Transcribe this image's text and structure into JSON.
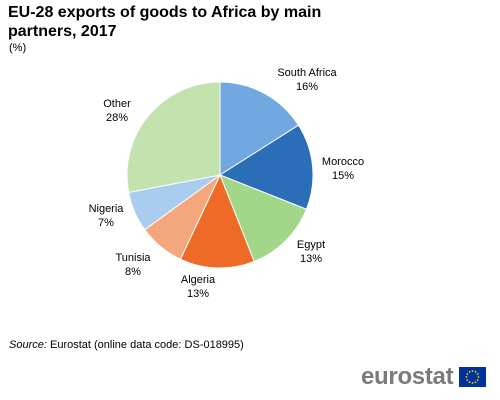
{
  "header": {
    "title": "EU-28 exports of goods to Africa by main partners, 2017",
    "unit": "(%)"
  },
  "chart_data": {
    "type": "pie",
    "title": "EU-28 exports of goods to Africa by main partners, 2017",
    "unit": "(%)",
    "categories": [
      "South Africa",
      "Morocco",
      "Egypt",
      "Algeria",
      "Tunisia",
      "Nigeria",
      "Other"
    ],
    "values": [
      16,
      15,
      13,
      13,
      8,
      7,
      28
    ],
    "labels": [
      "16%",
      "15%",
      "13%",
      "13%",
      "8%",
      "7%",
      "28%"
    ],
    "colors": [
      "#71A8E0",
      "#2A6EB7",
      "#A2D689",
      "#EE6B27",
      "#F4A77C",
      "#A9CCEF",
      "#C2E3AD"
    ],
    "start_angle_deg": 0,
    "direction": "clockwise",
    "legend": "none (labels beside slices)"
  },
  "footer": {
    "source_label": "Source:",
    "source_text": "Eurostat (online data code: DS-018995)"
  },
  "logo": {
    "text": "eurostat",
    "flag_color": "#003399",
    "star_color": "#FFCC00"
  }
}
